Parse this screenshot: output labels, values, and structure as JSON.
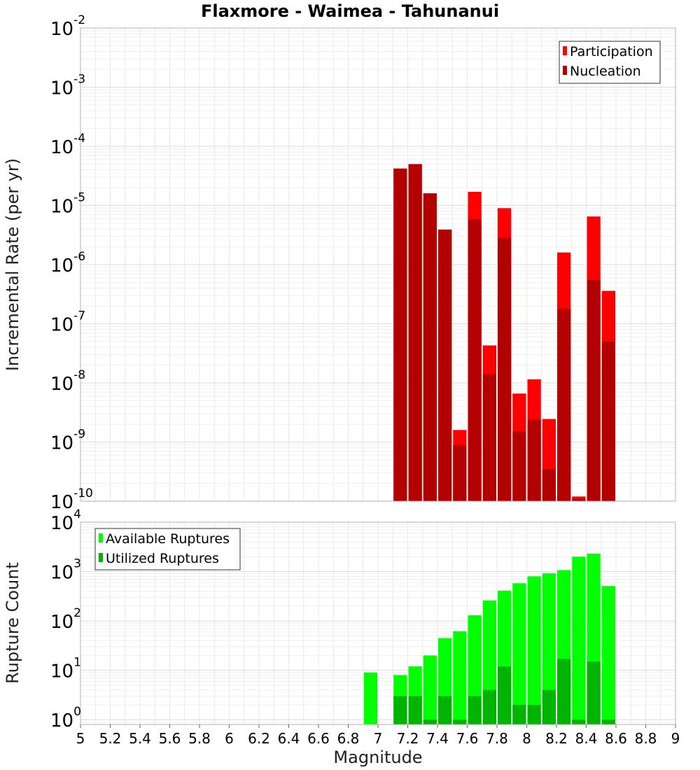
{
  "chart_data": [
    {
      "type": "bar",
      "title": "Flaxmore - Waimea - Tahunanui",
      "xlabel": "Magnitude",
      "ylabel": "Incremental Rate (per yr)",
      "yscale": "log",
      "ylim": [
        1e-10,
        0.01
      ],
      "xlim": [
        5,
        9
      ],
      "legend": "top-right",
      "grid": true,
      "x": [
        7.15,
        7.25,
        7.35,
        7.45,
        7.55,
        7.65,
        7.75,
        7.85,
        7.95,
        8.05,
        8.15,
        8.25,
        8.35,
        8.45,
        8.55
      ],
      "series": [
        {
          "name": "Participation",
          "color": "#ff0000",
          "values": [
            4.2e-05,
            5e-05,
            1.6e-05,
            3.9e-06,
            1.6e-09,
            1.7e-05,
            4.3e-08,
            9e-06,
            6.6e-09,
            1.15e-08,
            2.45e-09,
            1.6e-06,
            1.2e-10,
            6.5e-06,
            3.6e-07
          ]
        },
        {
          "name": "Nucleation",
          "color": "#b30000",
          "values": [
            4.2e-05,
            5e-05,
            1.6e-05,
            3.9e-06,
            8.8e-10,
            5.8e-06,
            1.4e-08,
            2.8e-06,
            1.5e-09,
            2.4e-09,
            3.5e-10,
            1.8e-07,
            1.1e-10,
            5.5e-07,
            5e-08
          ]
        }
      ],
      "yticks": [
        {
          "base": "10",
          "exp": "-2"
        },
        {
          "base": "10",
          "exp": "-3"
        },
        {
          "base": "10",
          "exp": "-4"
        },
        {
          "base": "10",
          "exp": "-5"
        },
        {
          "base": "10",
          "exp": "-6"
        },
        {
          "base": "10",
          "exp": "-7"
        },
        {
          "base": "10",
          "exp": "-8"
        },
        {
          "base": "10",
          "exp": "-9"
        },
        {
          "base": "10",
          "exp": "-10"
        }
      ]
    },
    {
      "type": "bar",
      "xlabel": "Magnitude",
      "ylabel": "Rupture Count",
      "yscale": "log",
      "ylim": [
        0.8,
        10000
      ],
      "xlim": [
        5,
        9
      ],
      "legend": "top-left",
      "grid": true,
      "x": [
        6.95,
        7.15,
        7.25,
        7.35,
        7.45,
        7.55,
        7.65,
        7.75,
        7.85,
        7.95,
        8.05,
        8.15,
        8.25,
        8.35,
        8.45,
        8.55
      ],
      "series": [
        {
          "name": "Available Ruptures",
          "color": "#00ff00",
          "values": [
            9,
            8,
            12,
            20,
            45,
            62,
            130,
            260,
            410,
            580,
            800,
            920,
            1070,
            2000,
            2300,
            510
          ]
        },
        {
          "name": "Utilized Ruptures",
          "color": "#00b300",
          "values": [
            0,
            3,
            3,
            1,
            3,
            1,
            3,
            4,
            12,
            2,
            2,
            4,
            17,
            1,
            15,
            1
          ]
        }
      ],
      "yticks": [
        {
          "base": "10",
          "exp": "4"
        },
        {
          "base": "10",
          "exp": "3"
        },
        {
          "base": "10",
          "exp": "2"
        },
        {
          "base": "10",
          "exp": "1"
        },
        {
          "base": "10",
          "exp": "0"
        }
      ],
      "xticks": [
        "5",
        "5.2",
        "5.4",
        "5.6",
        "5.8",
        "6",
        "6.2",
        "6.4",
        "6.6",
        "6.8",
        "7",
        "7.2",
        "7.4",
        "7.6",
        "7.8",
        "8",
        "8.2",
        "8.4",
        "8.6",
        "8.8",
        "9"
      ]
    }
  ]
}
